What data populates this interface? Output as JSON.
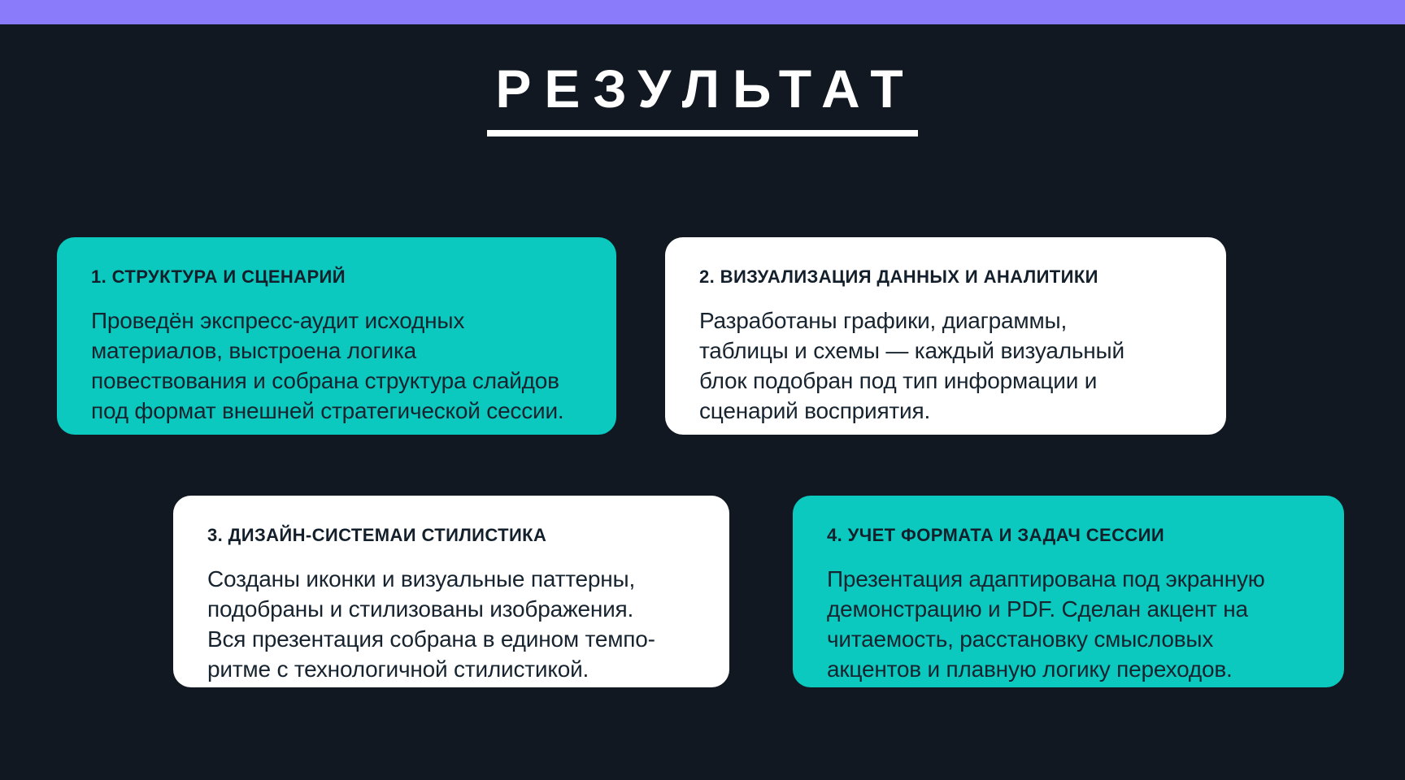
{
  "slide": {
    "title": "РЕЗУЛЬТАТ"
  },
  "colors": {
    "accent_bar": "#8a7bfa",
    "background": "#111821",
    "card_teal": "#0bc9be",
    "card_white": "#ffffff",
    "card_text": "#17242f",
    "title_text": "#ffffff"
  },
  "cards": [
    {
      "variant": "teal",
      "heading": "1. СТРУКТУРА И СЦЕНАРИЙ",
      "body": "Проведён экспресс-аудит исходных\nматериалов, выстроена логика\nповествования и собрана структура слайдов\nпод формат внешней стратегической сессии."
    },
    {
      "variant": "white",
      "heading": "2. ВИЗУАЛИЗАЦИЯ ДАННЫХ И АНАЛИТИКИ",
      "body": "Разработаны графики, диаграммы,\nтаблицы и схемы — каждый визуальный\nблок подобран под тип информации и\nсценарий восприятия."
    },
    {
      "variant": "white",
      "heading": "3. ДИЗАЙН-СИСТЕМАИ СТИЛИСТИКА",
      "body": "Созданы иконки и визуальные паттерны,\nподобраны и стилизованы изображения.\nВся презентация собрана в едином темпо-\nритме с технологичной стилистикой."
    },
    {
      "variant": "teal",
      "heading": "4. УЧЕТ ФОРМАТА И ЗАДАЧ СЕССИИ",
      "body": "Презентация адаптирована под экранную\nдемонстрацию и PDF. Сделан акцент на\nчитаемость, расстановку смысловых\nакцентов и плавную логику переходов."
    }
  ]
}
